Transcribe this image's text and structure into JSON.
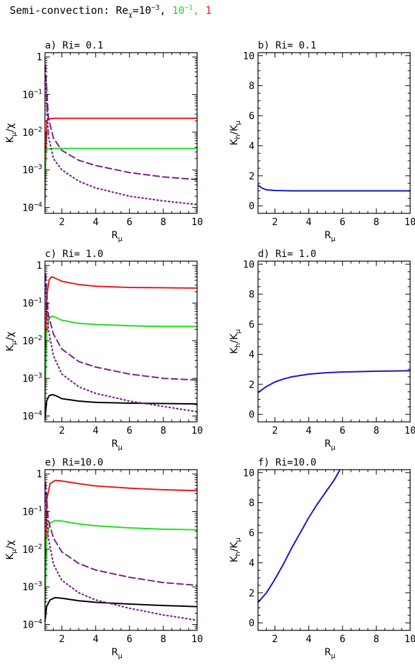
{
  "figure_title": {
    "prefix": "Semi-convection: Re",
    "sub": "χ",
    "eq": "=10",
    "exp1": "−3",
    "sep1": ", ",
    "green_base": "10",
    "green_exp": "−1",
    "sep2": ", ",
    "red_val": "1"
  },
  "colors": {
    "red": "#e8191a",
    "green": "#22dd22",
    "purple": "#7a1f8a",
    "black": "#000000",
    "blue": "#1515c8"
  },
  "chart_data": [
    {
      "id": "a",
      "type": "line",
      "side": "left",
      "title": "a) Ri= 0.1",
      "xlabel": "R",
      "xlabel_sub": "μ",
      "ylabel": "K",
      "ylabel_sub": "μ",
      "ylabel_tail": "/χ",
      "xlim": [
        1,
        10
      ],
      "ylim": [
        7e-05,
        1.3
      ],
      "yscale": "log",
      "xticks": [
        2,
        4,
        6,
        8,
        10
      ],
      "yticks": [
        {
          "value": 1,
          "base": "1",
          "exp": ""
        },
        {
          "value": 0.1,
          "base": "10",
          "exp": "−1"
        },
        {
          "value": 0.01,
          "base": "10",
          "exp": "−2"
        },
        {
          "value": 0.001,
          "base": "10",
          "exp": "−3"
        },
        {
          "value": 0.0001,
          "base": "10",
          "exp": "−4"
        }
      ],
      "series": [
        {
          "name": "Re=1",
          "color": "red",
          "style": "solid",
          "x": [
            1.0,
            1.1,
            1.3,
            1.6,
            2,
            4,
            6,
            8,
            10
          ],
          "y": [
            0.00015,
            0.02,
            0.023,
            0.0235,
            0.0235,
            0.0235,
            0.0235,
            0.0235,
            0.0235
          ]
        },
        {
          "name": "Re=0.1",
          "color": "green",
          "style": "solid",
          "x": [
            1.0,
            1.05,
            1.15,
            1.4,
            2,
            4,
            6,
            8,
            10
          ],
          "y": [
            0.00015,
            0.003,
            0.0036,
            0.0037,
            0.0037,
            0.0037,
            0.0037,
            0.0037,
            0.0037
          ]
        },
        {
          "name": "dashed",
          "color": "purple",
          "style": "dashed",
          "x": [
            1.03,
            1.2,
            1.5,
            2,
            3,
            4,
            6,
            8,
            10
          ],
          "y": [
            0.6,
            0.025,
            0.007,
            0.0033,
            0.0018,
            0.0013,
            0.00085,
            0.00065,
            0.00055
          ]
        },
        {
          "name": "dotted",
          "color": "purple",
          "style": "dotted",
          "x": [
            1.03,
            1.2,
            1.5,
            2,
            3,
            4,
            6,
            8,
            10
          ],
          "y": [
            0.3,
            0.008,
            0.002,
            0.001,
            0.0005,
            0.00033,
            0.0002,
            0.00015,
            0.00012
          ]
        }
      ]
    },
    {
      "id": "b",
      "type": "line",
      "side": "right",
      "title": "b) Ri= 0.1",
      "xlabel": "R",
      "xlabel_sub": "μ",
      "ylabel": "K",
      "ylabel_sub": "h",
      "ylabel_tail": "/K",
      "ylabel_sub2": "μ",
      "xlim": [
        1,
        10
      ],
      "ylim": [
        -0.5,
        10.2
      ],
      "yscale": "linear",
      "xticks": [
        2,
        4,
        6,
        8,
        10
      ],
      "yticks": [
        0,
        2,
        4,
        6,
        8,
        10
      ],
      "series": [
        {
          "name": "Kh/Kmu",
          "color": "blue",
          "style": "solid",
          "x": [
            1,
            1.2,
            1.5,
            2,
            3,
            4,
            6,
            8,
            10
          ],
          "y": [
            1.4,
            1.2,
            1.07,
            1.02,
            1.0,
            1.0,
            1.0,
            1.0,
            1.0
          ]
        }
      ]
    },
    {
      "id": "c",
      "type": "line",
      "side": "left",
      "title": "c) Ri= 1.0",
      "xlabel": "R",
      "xlabel_sub": "μ",
      "ylabel": "K",
      "ylabel_sub": "μ",
      "ylabel_tail": "/χ",
      "xlim": [
        1,
        10
      ],
      "ylim": [
        7e-05,
        1.3
      ],
      "yscale": "log",
      "xticks": [
        2,
        4,
        6,
        8,
        10
      ],
      "yticks": [
        {
          "value": 1,
          "base": "1",
          "exp": ""
        },
        {
          "value": 0.1,
          "base": "10",
          "exp": "−1"
        },
        {
          "value": 0.01,
          "base": "10",
          "exp": "−2"
        },
        {
          "value": 0.001,
          "base": "10",
          "exp": "−3"
        },
        {
          "value": 0.0001,
          "base": "10",
          "exp": "−4"
        }
      ],
      "series": [
        {
          "name": "Re=1",
          "color": "red",
          "style": "solid",
          "x": [
            1.0,
            1.1,
            1.25,
            1.4,
            1.6,
            2,
            3,
            4,
            6,
            8,
            10
          ],
          "y": [
            0.0003,
            0.15,
            0.42,
            0.5,
            0.46,
            0.38,
            0.31,
            0.28,
            0.26,
            0.255,
            0.25
          ]
        },
        {
          "name": "Re=0.1",
          "color": "green",
          "style": "solid",
          "x": [
            1.0,
            1.1,
            1.25,
            1.4,
            1.6,
            2,
            3,
            4,
            6,
            8,
            10
          ],
          "y": [
            0.0002,
            0.015,
            0.04,
            0.045,
            0.042,
            0.035,
            0.029,
            0.027,
            0.025,
            0.024,
            0.024
          ]
        },
        {
          "name": "Re=0.001",
          "color": "black",
          "style": "solid",
          "x": [
            1.0,
            1.1,
            1.25,
            1.45,
            1.7,
            2,
            3,
            4,
            6,
            8,
            10
          ],
          "y": [
            8e-05,
            0.00025,
            0.00035,
            0.00037,
            0.00034,
            0.00029,
            0.00025,
            0.00023,
            0.00022,
            0.000215,
            0.00021
          ]
        },
        {
          "name": "dashed",
          "color": "purple",
          "style": "dashed",
          "x": [
            1.03,
            1.2,
            1.5,
            2,
            3,
            4,
            6,
            8,
            10
          ],
          "y": [
            0.6,
            0.05,
            0.015,
            0.006,
            0.0028,
            0.002,
            0.0013,
            0.001,
            0.0009
          ]
        },
        {
          "name": "dotted",
          "color": "purple",
          "style": "dotted",
          "x": [
            1.03,
            1.2,
            1.5,
            2,
            3,
            4,
            6,
            8,
            10
          ],
          "y": [
            0.3,
            0.02,
            0.004,
            0.0013,
            0.0006,
            0.0004,
            0.00025,
            0.00018,
            0.00013
          ]
        }
      ]
    },
    {
      "id": "d",
      "type": "line",
      "side": "right",
      "title": "d) Ri= 1.0",
      "xlabel": "R",
      "xlabel_sub": "μ",
      "ylabel": "K",
      "ylabel_sub": "h",
      "ylabel_tail": "/K",
      "ylabel_sub2": "μ",
      "xlim": [
        1,
        10
      ],
      "ylim": [
        -0.5,
        10.2
      ],
      "yscale": "linear",
      "xticks": [
        2,
        4,
        6,
        8,
        10
      ],
      "yticks": [
        0,
        2,
        4,
        6,
        8,
        10
      ],
      "series": [
        {
          "name": "Kh/Kmu",
          "color": "blue",
          "style": "solid",
          "x": [
            1,
            1.5,
            2,
            2.5,
            3,
            4,
            5,
            6,
            8,
            10
          ],
          "y": [
            1.45,
            1.85,
            2.15,
            2.35,
            2.5,
            2.68,
            2.77,
            2.82,
            2.87,
            2.9
          ]
        }
      ]
    },
    {
      "id": "e",
      "type": "line",
      "side": "left",
      "title": "e) Ri=10.0",
      "xlabel": "R",
      "xlabel_sub": "μ",
      "ylabel": "K",
      "ylabel_sub": "μ",
      "ylabel_tail": "/χ",
      "xlim": [
        1,
        10
      ],
      "ylim": [
        7e-05,
        1.3
      ],
      "yscale": "log",
      "xticks": [
        2,
        4,
        6,
        8,
        10
      ],
      "yticks": [
        {
          "value": 1,
          "base": "1",
          "exp": ""
        },
        {
          "value": 0.1,
          "base": "10",
          "exp": "−1"
        },
        {
          "value": 0.01,
          "base": "10",
          "exp": "−2"
        },
        {
          "value": 0.001,
          "base": "10",
          "exp": "−3"
        },
        {
          "value": 0.0001,
          "base": "10",
          "exp": "−4"
        }
      ],
      "series": [
        {
          "name": "Re=1",
          "color": "red",
          "style": "solid",
          "x": [
            1.0,
            1.1,
            1.3,
            1.6,
            2,
            3,
            4,
            6,
            8,
            10
          ],
          "y": [
            0.0003,
            0.2,
            0.55,
            0.67,
            0.65,
            0.55,
            0.48,
            0.42,
            0.38,
            0.36
          ]
        },
        {
          "name": "Re=0.1",
          "color": "green",
          "style": "solid",
          "x": [
            1.0,
            1.1,
            1.3,
            1.6,
            2,
            3,
            4,
            6,
            8,
            10
          ],
          "y": [
            0.0002,
            0.02,
            0.05,
            0.058,
            0.056,
            0.047,
            0.042,
            0.037,
            0.034,
            0.033
          ]
        },
        {
          "name": "Re=0.001",
          "color": "black",
          "style": "solid",
          "x": [
            1.0,
            1.1,
            1.3,
            1.6,
            2,
            3,
            4,
            6,
            8,
            10
          ],
          "y": [
            0.00012,
            0.0003,
            0.00045,
            0.00052,
            0.0005,
            0.00043,
            0.00039,
            0.00035,
            0.00032,
            0.0003
          ]
        },
        {
          "name": "dashed",
          "color": "purple",
          "style": "dashed",
          "x": [
            1.03,
            1.2,
            1.5,
            2,
            3,
            4,
            6,
            8,
            10
          ],
          "y": [
            0.6,
            0.06,
            0.02,
            0.0085,
            0.0042,
            0.0028,
            0.0018,
            0.0013,
            0.0011
          ]
        },
        {
          "name": "dotted",
          "color": "purple",
          "style": "dotted",
          "x": [
            1.03,
            1.2,
            1.5,
            2,
            3,
            4,
            6,
            8,
            10
          ],
          "y": [
            0.3,
            0.02,
            0.004,
            0.0015,
            0.0007,
            0.00045,
            0.00027,
            0.00018,
            0.00013
          ]
        }
      ]
    },
    {
      "id": "f",
      "type": "line",
      "side": "right",
      "title": "f) Ri=10.0",
      "xlabel": "R",
      "xlabel_sub": "μ",
      "ylabel": "K",
      "ylabel_sub": "h",
      "ylabel_tail": "/K",
      "ylabel_sub2": "μ",
      "xlim": [
        1,
        10
      ],
      "ylim": [
        -0.5,
        10.2
      ],
      "yscale": "linear",
      "xticks": [
        2,
        4,
        6,
        8,
        10
      ],
      "yticks": [
        0,
        2,
        4,
        6,
        8,
        10
      ],
      "series": [
        {
          "name": "Kh/Kmu",
          "color": "blue",
          "style": "solid",
          "x": [
            1,
            1.5,
            2,
            2.5,
            3,
            3.5,
            4,
            4.5,
            5,
            5.5,
            5.85
          ],
          "y": [
            1.35,
            2.0,
            2.9,
            3.9,
            5.0,
            6.0,
            7.0,
            7.9,
            8.7,
            9.5,
            10.2
          ]
        }
      ]
    }
  ]
}
